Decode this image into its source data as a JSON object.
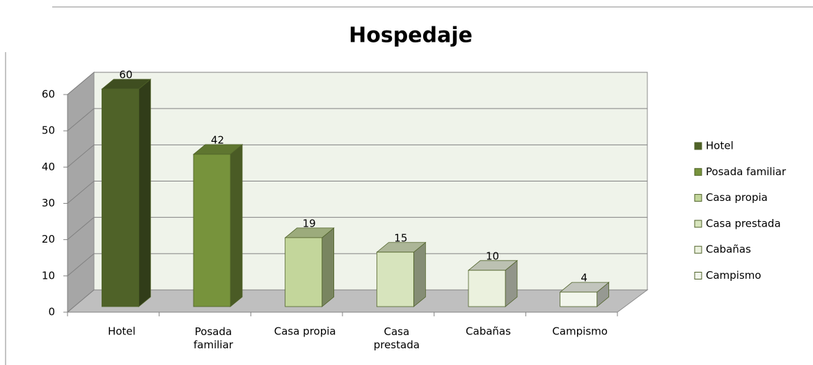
{
  "chart_data": {
    "type": "bar3d",
    "title": "Hospedaje",
    "categories": [
      "Hotel",
      "Posada familiar",
      "Casa propia",
      "Casa prestada",
      "Cabañas",
      "Campismo"
    ],
    "values": [
      60,
      42,
      19,
      15,
      10,
      4
    ],
    "colors": [
      "#4f6228",
      "#77933c",
      "#c3d69b",
      "#d7e4bd",
      "#ebf1de",
      "#f2f6ec"
    ],
    "ylim": [
      0,
      60
    ],
    "yticks": [
      0,
      10,
      20,
      30,
      40,
      50,
      60
    ],
    "grid": true,
    "legend": "right"
  }
}
